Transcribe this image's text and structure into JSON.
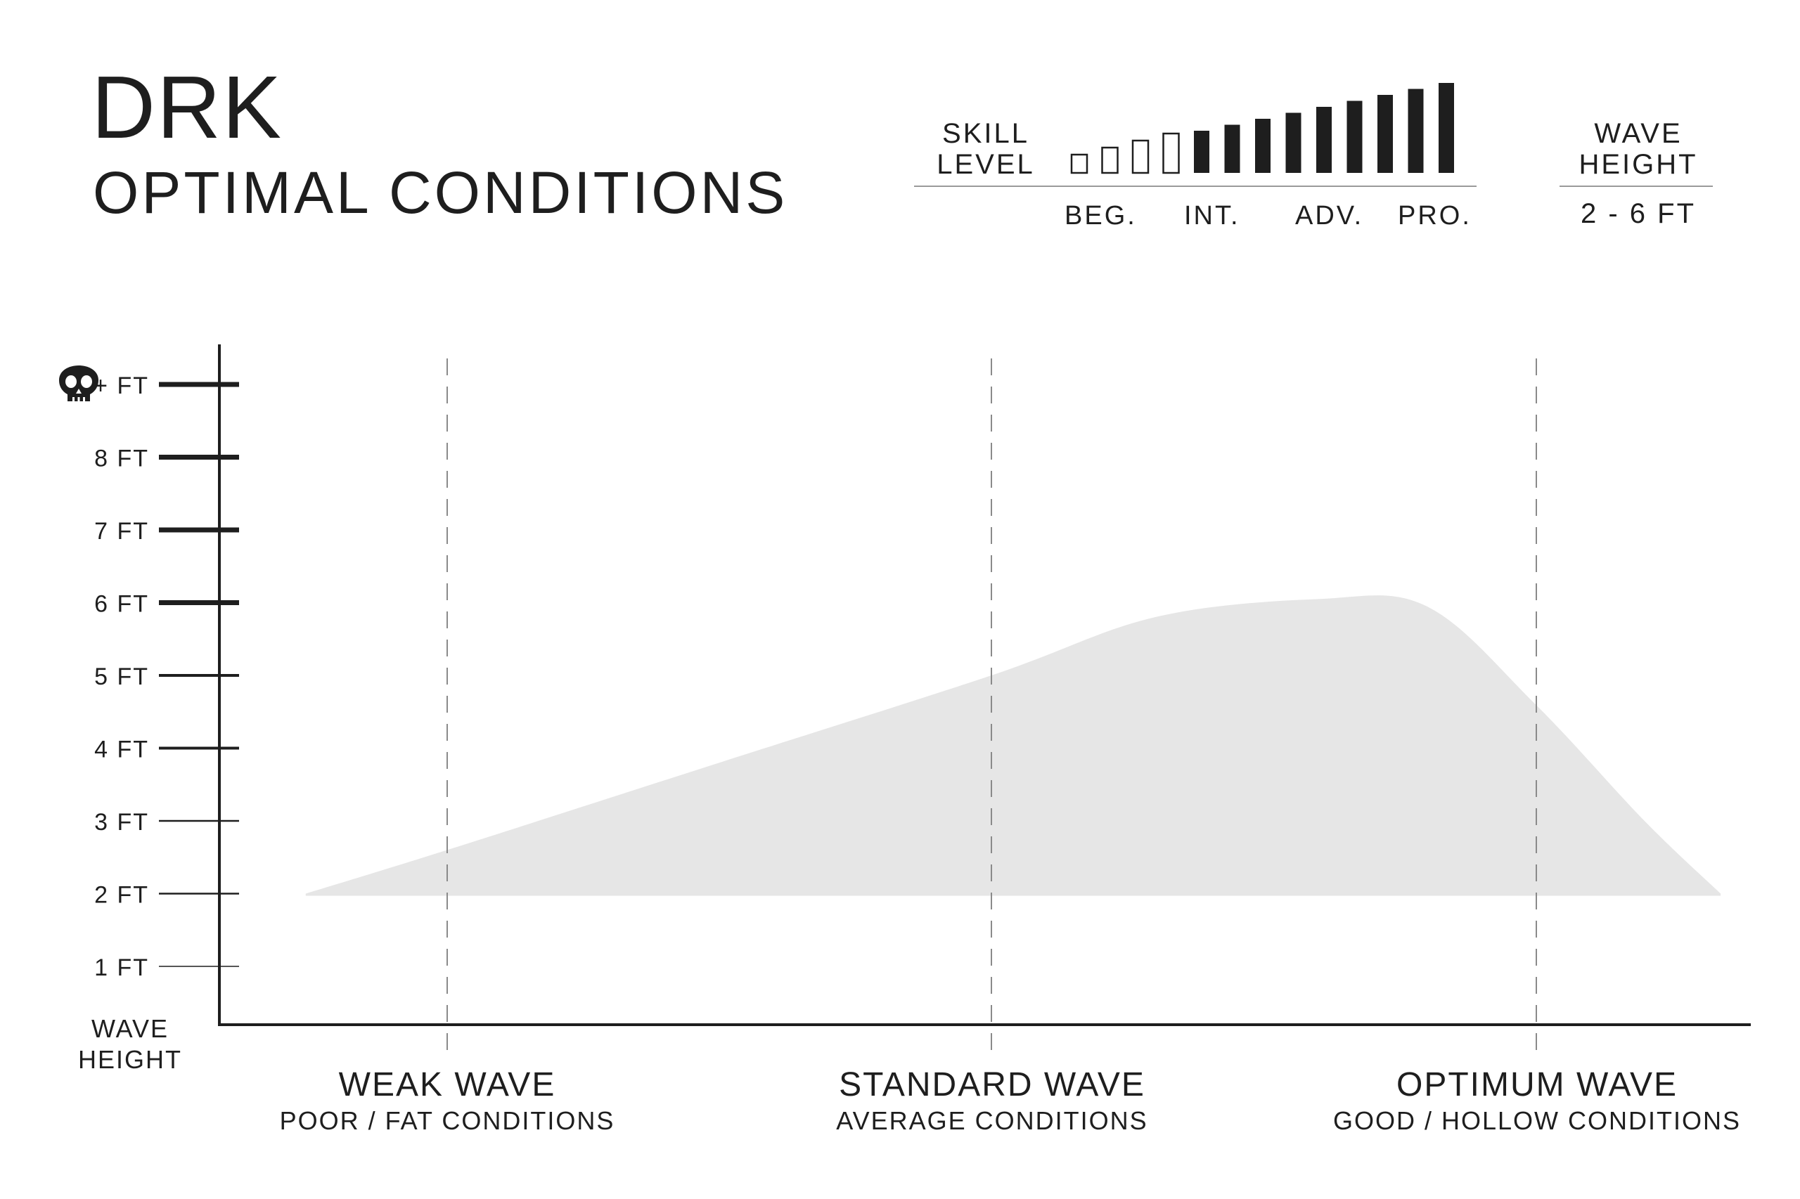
{
  "header": {
    "title": "DRK",
    "subtitle": "OPTIMAL CONDITIONS"
  },
  "skill_level": {
    "label_line1": "SKILL",
    "label_line2": "LEVEL",
    "total_bars": 13,
    "filled_from": 4,
    "ticks": [
      "BEG.",
      "INT.",
      "ADV.",
      "PRO."
    ]
  },
  "wave_height_panel": {
    "label_line1": "WAVE",
    "label_line2": "HEIGHT",
    "range": "2 - 6 FT"
  },
  "chart_data": {
    "type": "area",
    "ylabel_line1": "WAVE",
    "ylabel_line2": "HEIGHT",
    "ylim": [
      0,
      10
    ],
    "yticks": [
      {
        "value": 1,
        "label": "1 FT"
      },
      {
        "value": 2,
        "label": "2 FT"
      },
      {
        "value": 3,
        "label": "3 FT"
      },
      {
        "value": 4,
        "label": "4 FT"
      },
      {
        "value": 5,
        "label": "5 FT"
      },
      {
        "value": 6,
        "label": "6 FT"
      },
      {
        "value": 7,
        "label": "7 FT"
      },
      {
        "value": 8,
        "label": "8 FT"
      },
      {
        "value": 9,
        "label": "+ FT",
        "icon": "skull-icon"
      }
    ],
    "categories": [
      {
        "name": "WEAK WAVE",
        "sub": "POOR / FAT CONDITIONS"
      },
      {
        "name": "STANDARD WAVE",
        "sub": "AVERAGE CONDITIONS"
      },
      {
        "name": "OPTIMUM WAVE",
        "sub": "GOOD / HOLLOW CONDITIONS"
      }
    ],
    "xlim": [
      -0.5,
      2.4
    ],
    "upper": [
      [
        -0.26,
        2.0
      ],
      [
        0.0,
        2.6
      ],
      [
        0.5,
        3.8
      ],
      [
        1.0,
        5.0
      ],
      [
        1.3,
        5.8
      ],
      [
        1.6,
        6.05
      ],
      [
        1.8,
        5.95
      ],
      [
        2.0,
        4.6
      ],
      [
        2.2,
        3.0
      ],
      [
        2.34,
        2.0
      ]
    ],
    "lower": [
      [
        -0.26,
        2.0
      ],
      [
        2.34,
        2.0
      ]
    ],
    "colors": {
      "fill": "#e6e6e6",
      "axis": "#1e1e1e",
      "grid": "#8a8a8a",
      "bar": "#1e1e1e"
    }
  }
}
